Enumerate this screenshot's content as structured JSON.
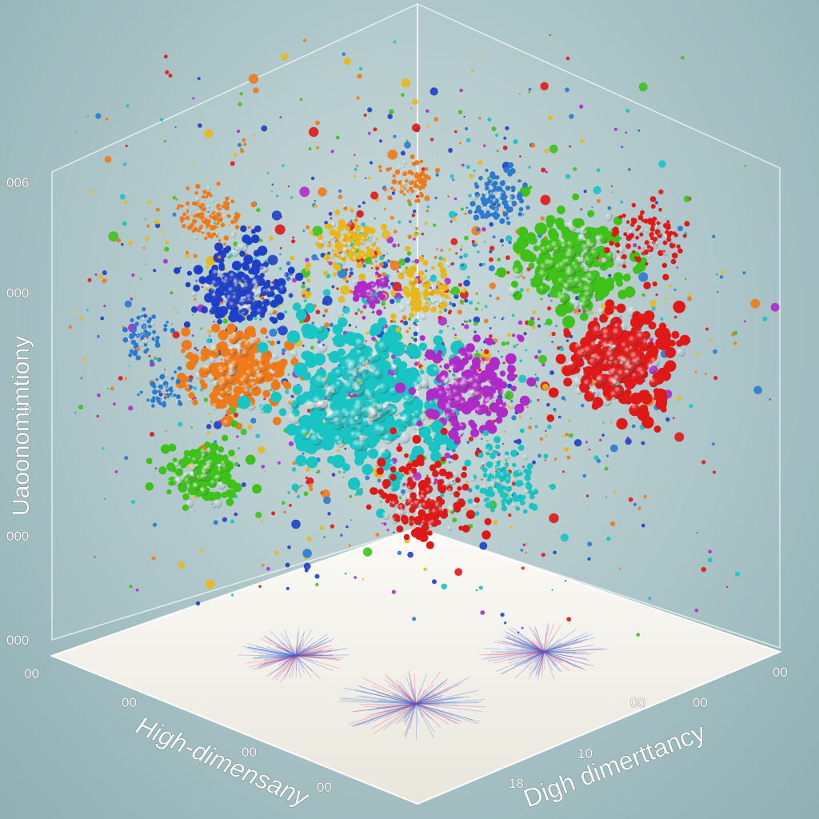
{
  "chart_data": {
    "type": "scatter",
    "projection": "3d",
    "title": "",
    "xlabel": "High-dimensany",
    "ylabel": "Digh dimerttancy",
    "zlabel": "Uaoonomimtiony",
    "z_tick_labels": [
      "000",
      "000",
      "0",
      "000",
      "006"
    ],
    "corner_tick_labels": {
      "left": "00",
      "right": "00"
    },
    "x_tick_labels": [
      "00",
      "00",
      "00",
      "00"
    ],
    "y_tick_labels": [
      "18",
      "10",
      "00"
    ],
    "grid": false,
    "legend": "none",
    "series": [
      {
        "color": "#18c4c4",
        "density": "large"
      },
      {
        "color": "#e01818",
        "density": "large"
      },
      {
        "color": "#3ec21a",
        "density": "large"
      },
      {
        "color": "#1e3fc8",
        "density": "large"
      },
      {
        "color": "#f07a18",
        "density": "medium"
      },
      {
        "color": "#b02ac8",
        "density": "medium"
      },
      {
        "color": "#2a7ad0",
        "density": "medium"
      },
      {
        "color": "#e8b81a",
        "density": "small"
      }
    ],
    "floor_projections": {
      "colors": [
        "#2a64d8",
        "#e83a6a"
      ]
    }
  }
}
